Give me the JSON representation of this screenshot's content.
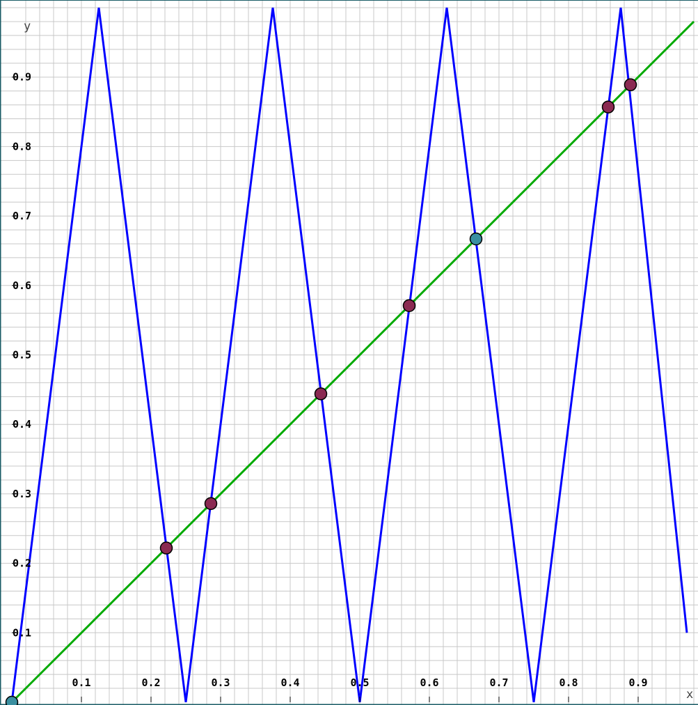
{
  "chart_data": {
    "type": "line",
    "xlabel": "x",
    "ylabel": "y",
    "xlim": [
      0,
      0.97
    ],
    "ylim": [
      0,
      0.98
    ],
    "grid": true,
    "minor_grid_step": 0.02,
    "major_grid_step": 0.1,
    "x_ticks": [
      {
        "value": 0.1,
        "label": "0.1"
      },
      {
        "value": 0.2,
        "label": "0.2"
      },
      {
        "value": 0.3,
        "label": "0.3"
      },
      {
        "value": 0.4,
        "label": "0.4"
      },
      {
        "value": 0.5,
        "label": "0.5"
      },
      {
        "value": 0.6,
        "label": "0.6"
      },
      {
        "value": 0.7,
        "label": "0.7"
      },
      {
        "value": 0.8,
        "label": "0.8"
      },
      {
        "value": 0.9,
        "label": "0.9"
      }
    ],
    "y_ticks": [
      {
        "value": 0.1,
        "label": "0.1"
      },
      {
        "value": 0.2,
        "label": "0.2"
      },
      {
        "value": 0.3,
        "label": "0.3"
      },
      {
        "value": 0.4,
        "label": "0.4"
      },
      {
        "value": 0.5,
        "label": "0.5"
      },
      {
        "value": 0.6,
        "label": "0.6"
      },
      {
        "value": 0.7,
        "label": "0.7"
      },
      {
        "value": 0.8,
        "label": "0.8"
      },
      {
        "value": 0.9,
        "label": "0.9"
      }
    ],
    "series": [
      {
        "kind": "polyline",
        "color": "#0000ff",
        "points": [
          [
            0,
            0
          ],
          [
            0.125,
            1.0
          ],
          [
            0.25,
            0
          ],
          [
            0.375,
            1.0
          ],
          [
            0.5,
            0
          ],
          [
            0.625,
            1.0
          ],
          [
            0.75,
            0
          ],
          [
            0.875,
            1.0
          ],
          [
            0.97,
            0.1
          ]
        ]
      },
      {
        "kind": "polyline",
        "color": "#00aa00",
        "points": [
          [
            0,
            0
          ],
          [
            0.98,
            0.98
          ]
        ]
      },
      {
        "kind": "points",
        "color": "#8b2a52",
        "points": [
          [
            0.222,
            0.222
          ],
          [
            0.286,
            0.286
          ],
          [
            0.444,
            0.444
          ],
          [
            0.571,
            0.571
          ],
          [
            0.857,
            0.857
          ],
          [
            0.889,
            0.889
          ]
        ]
      },
      {
        "kind": "points",
        "color": "#3a8fa0",
        "points": [
          [
            0,
            0
          ],
          [
            0.667,
            0.667
          ]
        ]
      }
    ]
  }
}
